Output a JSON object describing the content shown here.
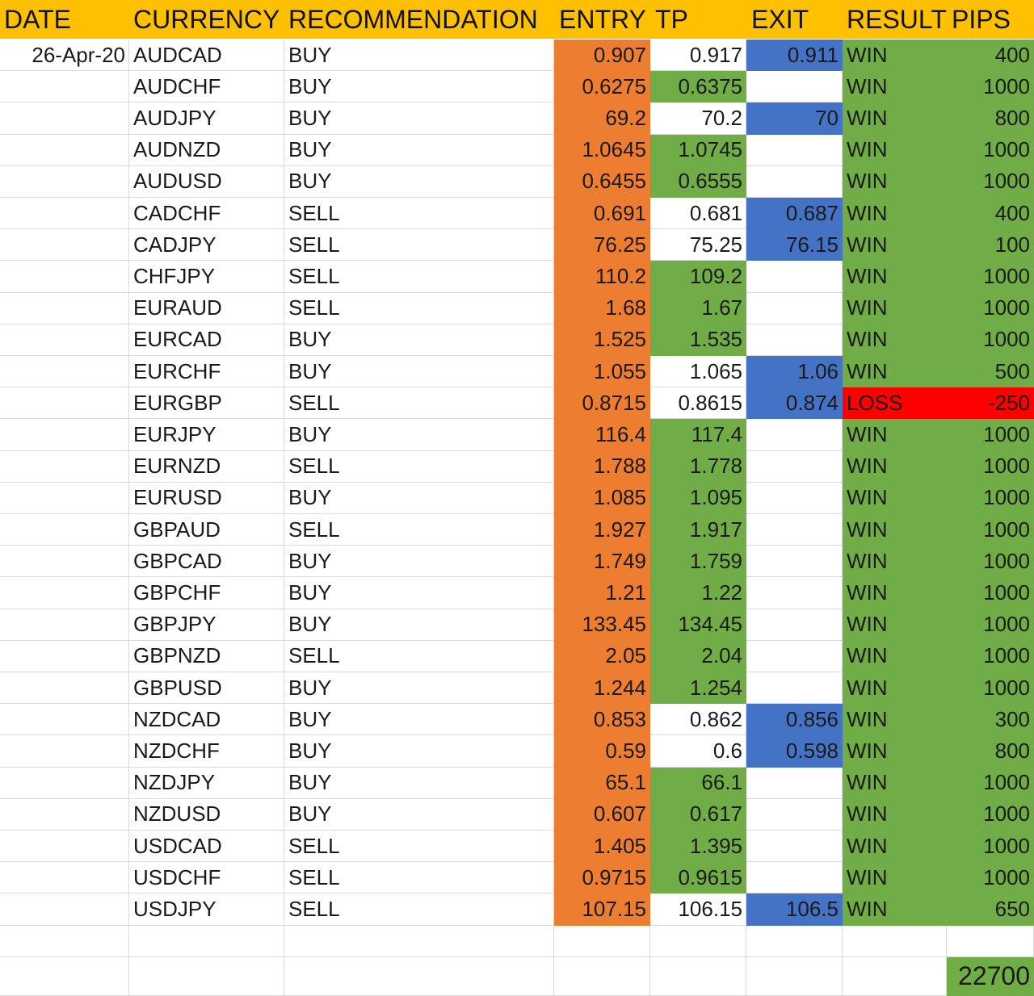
{
  "headers": {
    "date": "DATE",
    "currency": "CURRENCY",
    "recommendation": "RECOMMENDATION",
    "entry": "ENTRY",
    "tp": "TP",
    "exit": "EXIT",
    "result": "RESULT",
    "pips": "PIPS"
  },
  "rows": [
    {
      "date": "26-Apr-20",
      "currency": "AUDCAD",
      "rec": "BUY",
      "entry": "0.907",
      "tp": "0.917",
      "exit": "0.911",
      "result": "WIN",
      "pips": "400"
    },
    {
      "date": "",
      "currency": "AUDCHF",
      "rec": "BUY",
      "entry": "0.6275",
      "tp": "0.6375",
      "exit": "",
      "result": "WIN",
      "pips": "1000"
    },
    {
      "date": "",
      "currency": "AUDJPY",
      "rec": "BUY",
      "entry": "69.2",
      "tp": "70.2",
      "exit": "70",
      "result": "WIN",
      "pips": "800"
    },
    {
      "date": "",
      "currency": "AUDNZD",
      "rec": "BUY",
      "entry": "1.0645",
      "tp": "1.0745",
      "exit": "",
      "result": "WIN",
      "pips": "1000"
    },
    {
      "date": "",
      "currency": "AUDUSD",
      "rec": "BUY",
      "entry": "0.6455",
      "tp": "0.6555",
      "exit": "",
      "result": "WIN",
      "pips": "1000"
    },
    {
      "date": "",
      "currency": "CADCHF",
      "rec": "SELL",
      "entry": "0.691",
      "tp": "0.681",
      "exit": "0.687",
      "result": "WIN",
      "pips": "400"
    },
    {
      "date": "",
      "currency": "CADJPY",
      "rec": "SELL",
      "entry": "76.25",
      "tp": "75.25",
      "exit": "76.15",
      "result": "WIN",
      "pips": "100"
    },
    {
      "date": "",
      "currency": "CHFJPY",
      "rec": "SELL",
      "entry": "110.2",
      "tp": "109.2",
      "exit": "",
      "result": "WIN",
      "pips": "1000"
    },
    {
      "date": "",
      "currency": "EURAUD",
      "rec": "SELL",
      "entry": "1.68",
      "tp": "1.67",
      "exit": "",
      "result": "WIN",
      "pips": "1000"
    },
    {
      "date": "",
      "currency": "EURCAD",
      "rec": "BUY",
      "entry": "1.525",
      "tp": "1.535",
      "exit": "",
      "result": "WIN",
      "pips": "1000"
    },
    {
      "date": "",
      "currency": "EURCHF",
      "rec": "BUY",
      "entry": "1.055",
      "tp": "1.065",
      "exit": "1.06",
      "result": "WIN",
      "pips": "500"
    },
    {
      "date": "",
      "currency": "EURGBP",
      "rec": "SELL",
      "entry": "0.8715",
      "tp": "0.8615",
      "exit": "0.874",
      "result": "LOSS",
      "pips": "-250"
    },
    {
      "date": "",
      "currency": "EURJPY",
      "rec": "BUY",
      "entry": "116.4",
      "tp": "117.4",
      "exit": "",
      "result": "WIN",
      "pips": "1000"
    },
    {
      "date": "",
      "currency": "EURNZD",
      "rec": "SELL",
      "entry": "1.788",
      "tp": "1.778",
      "exit": "",
      "result": "WIN",
      "pips": "1000"
    },
    {
      "date": "",
      "currency": "EURUSD",
      "rec": "BUY",
      "entry": "1.085",
      "tp": "1.095",
      "exit": "",
      "result": "WIN",
      "pips": "1000"
    },
    {
      "date": "",
      "currency": "GBPAUD",
      "rec": "SELL",
      "entry": "1.927",
      "tp": "1.917",
      "exit": "",
      "result": "WIN",
      "pips": "1000"
    },
    {
      "date": "",
      "currency": "GBPCAD",
      "rec": "BUY",
      "entry": "1.749",
      "tp": "1.759",
      "exit": "",
      "result": "WIN",
      "pips": "1000"
    },
    {
      "date": "",
      "currency": "GBPCHF",
      "rec": "BUY",
      "entry": "1.21",
      "tp": "1.22",
      "exit": "",
      "result": "WIN",
      "pips": "1000"
    },
    {
      "date": "",
      "currency": "GBPJPY",
      "rec": "BUY",
      "entry": "133.45",
      "tp": "134.45",
      "exit": "",
      "result": "WIN",
      "pips": "1000"
    },
    {
      "date": "",
      "currency": "GBPNZD",
      "rec": "SELL",
      "entry": "2.05",
      "tp": "2.04",
      "exit": "",
      "result": "WIN",
      "pips": "1000"
    },
    {
      "date": "",
      "currency": "GBPUSD",
      "rec": "BUY",
      "entry": "1.244",
      "tp": "1.254",
      "exit": "",
      "result": "WIN",
      "pips": "1000"
    },
    {
      "date": "",
      "currency": "NZDCAD",
      "rec": "BUY",
      "entry": "0.853",
      "tp": "0.862",
      "exit": "0.856",
      "result": "WIN",
      "pips": "300"
    },
    {
      "date": "",
      "currency": "NZDCHF",
      "rec": "BUY",
      "entry": "0.59",
      "tp": "0.6",
      "exit": "0.598",
      "result": "WIN",
      "pips": "800"
    },
    {
      "date": "",
      "currency": "NZDJPY",
      "rec": "BUY",
      "entry": "65.1",
      "tp": "66.1",
      "exit": "",
      "result": "WIN",
      "pips": "1000"
    },
    {
      "date": "",
      "currency": "NZDUSD",
      "rec": "BUY",
      "entry": "0.607",
      "tp": "0.617",
      "exit": "",
      "result": "WIN",
      "pips": "1000"
    },
    {
      "date": "",
      "currency": "USDCAD",
      "rec": "SELL",
      "entry": "1.405",
      "tp": "1.395",
      "exit": "",
      "result": "WIN",
      "pips": "1000"
    },
    {
      "date": "",
      "currency": "USDCHF",
      "rec": "SELL",
      "entry": "0.9715",
      "tp": "0.9615",
      "exit": "",
      "result": "WIN",
      "pips": "1000"
    },
    {
      "date": "",
      "currency": "USDJPY",
      "rec": "SELL",
      "entry": "107.15",
      "tp": "106.15",
      "exit": "106.5",
      "result": "WIN",
      "pips": "650"
    }
  ],
  "total_pips": "22700",
  "colors": {
    "header": "#ffc000",
    "entry": "#ed7d31",
    "tp_hit": "#70ad47",
    "exit": "#4472c4",
    "win": "#70ad47",
    "loss": "#ff0000"
  }
}
